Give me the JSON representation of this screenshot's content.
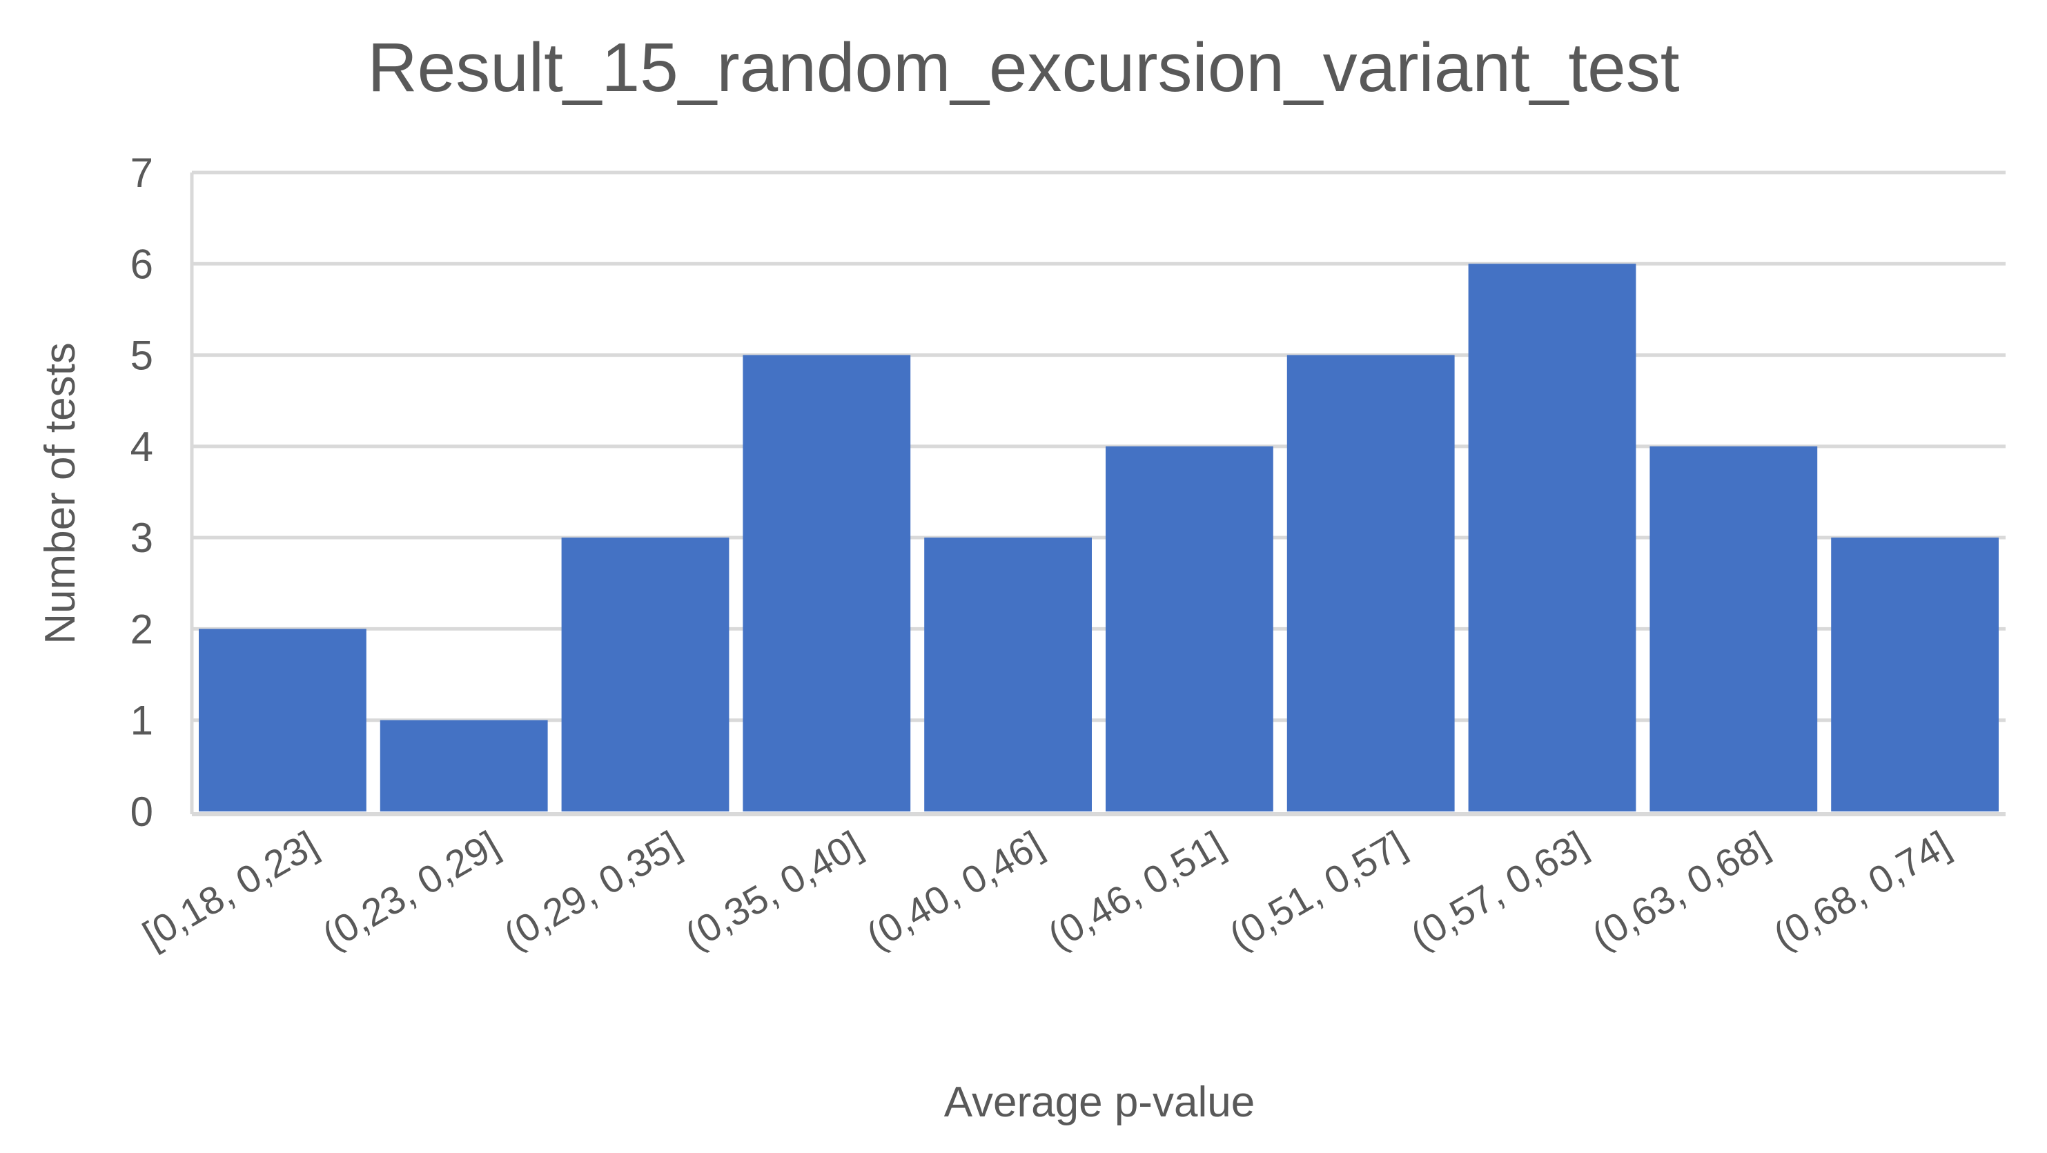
{
  "chart_data": {
    "type": "bar",
    "title": "Result_15_random_excursion_variant_test",
    "xlabel": "Average  p-value",
    "ylabel": "Number of tests",
    "categories": [
      "[0,18, 0,23]",
      "(0,23, 0,29]",
      "(0,29, 0,35]",
      "(0,35, 0,40]",
      "(0,40, 0,46]",
      "(0,46, 0,51]",
      "(0,51, 0,57]",
      "(0,57, 0,63]",
      "(0,63, 0,68]",
      "(0,68, 0,74]"
    ],
    "values": [
      2,
      1,
      3,
      5,
      3,
      4,
      5,
      6,
      4,
      3
    ],
    "ylim": [
      0,
      7
    ],
    "yticks": [
      "0",
      "1",
      "2",
      "3",
      "4",
      "5",
      "6",
      "7"
    ],
    "grid": true,
    "legend": "none",
    "colors": {
      "bar": "#4472C4",
      "grid": "#D9D9D9",
      "text": "#595959"
    }
  }
}
